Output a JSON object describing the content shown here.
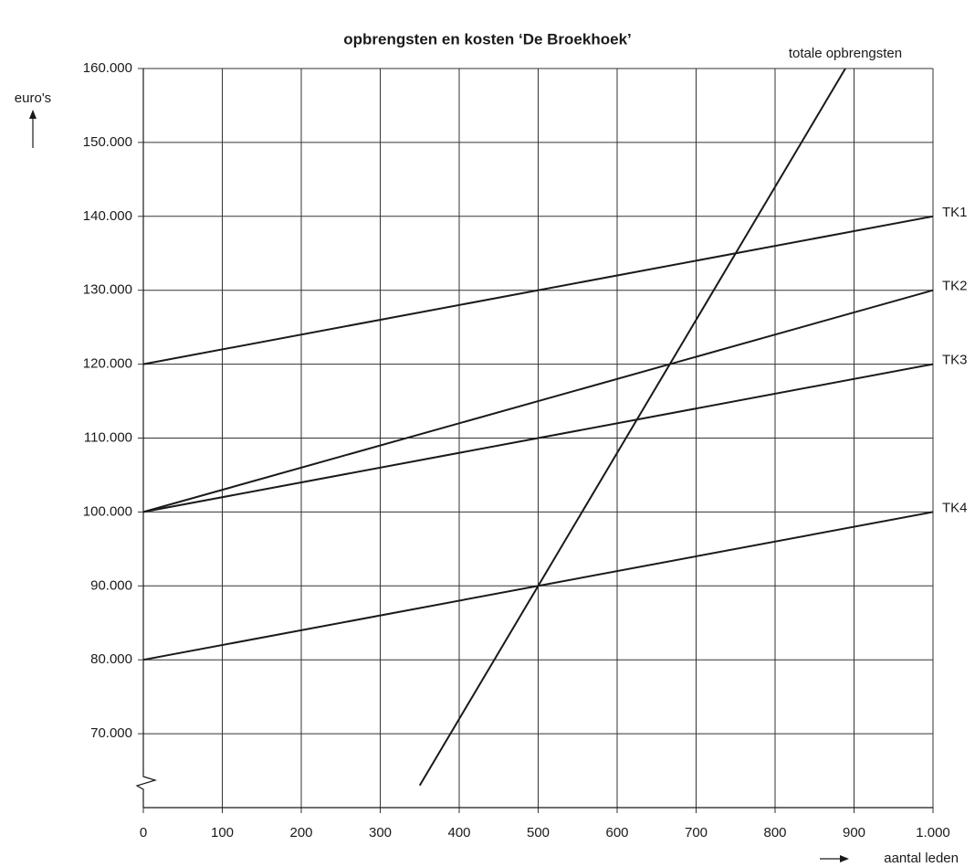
{
  "chart_data": {
    "type": "line",
    "title": "opbrengsten en kosten ‘De Broekhoek’",
    "y_label": "euro's",
    "x_label": "aantal leden",
    "xlim": [
      0,
      1000
    ],
    "xticks": [
      0,
      100,
      200,
      300,
      400,
      500,
      600,
      700,
      800,
      900,
      {
        "value": 1000,
        "label": "1.000"
      }
    ],
    "ylim": [
      60000,
      160000
    ],
    "yticks": [
      {
        "value": 70000,
        "label": "70.000"
      },
      {
        "value": 80000,
        "label": "80.000"
      },
      {
        "value": 90000,
        "label": "90.000"
      },
      {
        "value": 100000,
        "label": "100.000"
      },
      {
        "value": 110000,
        "label": "110.000"
      },
      {
        "value": 120000,
        "label": "120.000"
      },
      {
        "value": 130000,
        "label": "130.000"
      },
      {
        "value": 140000,
        "label": "140.000"
      },
      {
        "value": 150000,
        "label": "150.000"
      },
      {
        "value": 160000,
        "label": "160.000"
      }
    ],
    "grid": true,
    "series": [
      {
        "name": "totale opbrengsten",
        "color": "#1a1a1a",
        "x": [
          350,
          889
        ],
        "values": [
          63000,
          160000
        ]
      },
      {
        "name": "TK1",
        "color": "#1a1a1a",
        "x": [
          0,
          1000
        ],
        "values": [
          120000,
          140000
        ]
      },
      {
        "name": "TK2",
        "color": "#1a1a1a",
        "x": [
          0,
          1000
        ],
        "values": [
          100000,
          130000
        ]
      },
      {
        "name": "TK3",
        "color": "#1a1a1a",
        "x": [
          0,
          1000
        ],
        "values": [
          100000,
          120000
        ]
      },
      {
        "name": "TK4",
        "color": "#1a1a1a",
        "x": [
          0,
          1000
        ],
        "values": [
          80000,
          100000
        ]
      }
    ]
  }
}
